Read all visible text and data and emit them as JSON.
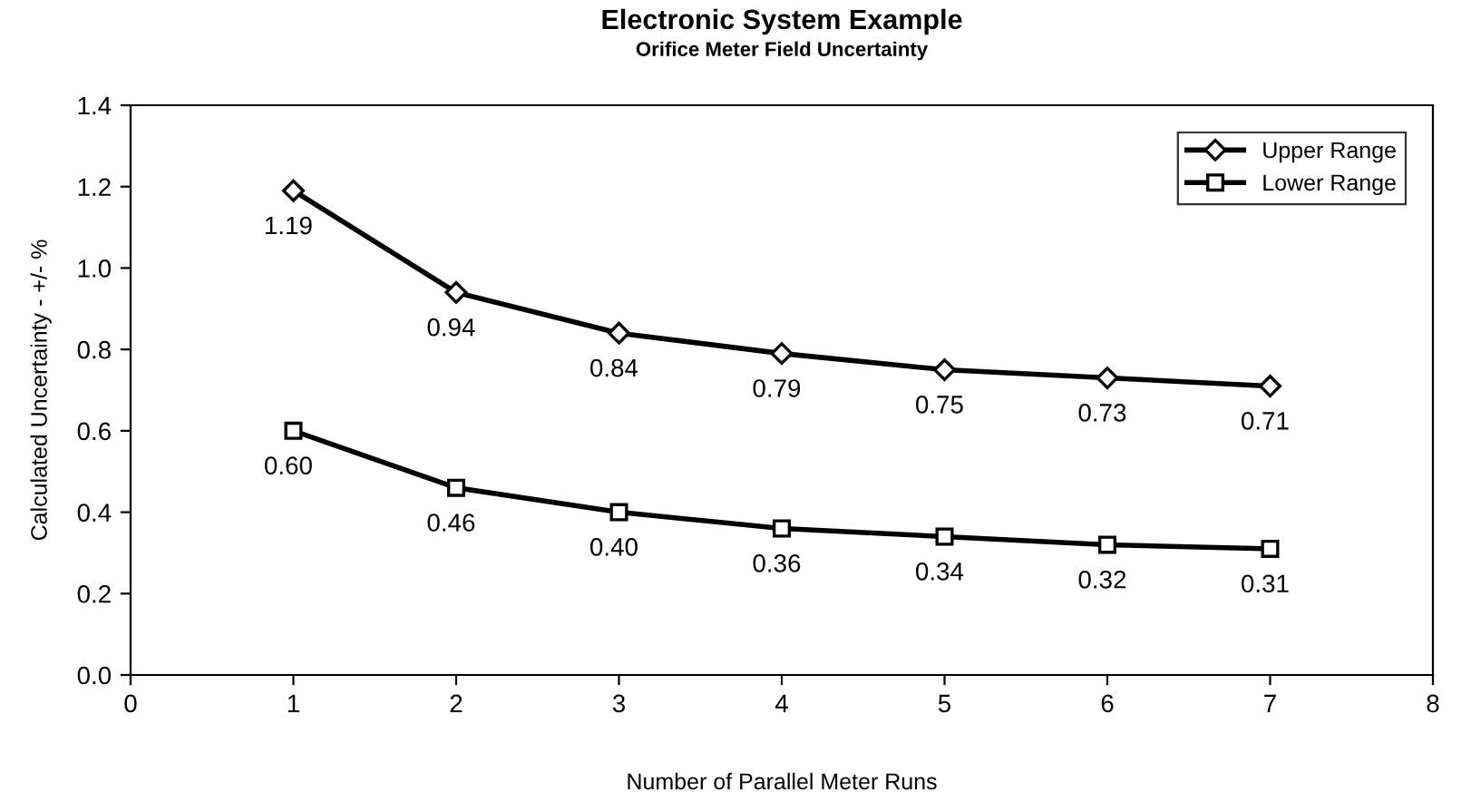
{
  "chart_data": {
    "type": "line",
    "title": "Electronic System Example",
    "subtitle": "Orifice Meter Field Uncertainty",
    "xlabel": "Number of Parallel Meter Runs",
    "ylabel": "Calculated Uncertainty - +/- %",
    "x": [
      1,
      2,
      3,
      4,
      5,
      6,
      7
    ],
    "series": [
      {
        "name": "Upper Range",
        "color": "#000000",
        "marker": "diamond",
        "values": [
          1.19,
          0.94,
          0.84,
          0.79,
          0.75,
          0.73,
          0.71
        ],
        "value_labels": [
          "1.19",
          "0.94",
          "0.84",
          "0.79",
          "0.75",
          "0.73",
          "0.71"
        ]
      },
      {
        "name": "Lower Range",
        "color": "#000000",
        "marker": "square",
        "values": [
          0.6,
          0.46,
          0.4,
          0.36,
          0.34,
          0.32,
          0.31
        ],
        "value_labels": [
          "0.60",
          "0.46",
          "0.40",
          "0.36",
          "0.34",
          "0.32",
          "0.31"
        ]
      }
    ],
    "xlim": [
      0,
      8
    ],
    "xticks": [
      0,
      1,
      2,
      3,
      4,
      5,
      6,
      7,
      8
    ],
    "ylim": [
      0,
      1.4
    ],
    "yticks": [
      {
        "value": 0,
        "label": "0.0"
      },
      {
        "value": 0.2,
        "label": "0.2"
      },
      {
        "value": 0.4,
        "label": "0.4"
      },
      {
        "value": 0.6,
        "label": "0.6"
      },
      {
        "value": 0.8,
        "label": "0.8"
      },
      {
        "value": 1.0,
        "label": "1.0"
      },
      {
        "value": 1.2,
        "label": "1.2"
      },
      {
        "value": 1.4,
        "label": "1.4"
      }
    ],
    "grid": false,
    "legend": "top right",
    "line_style": "solid"
  }
}
